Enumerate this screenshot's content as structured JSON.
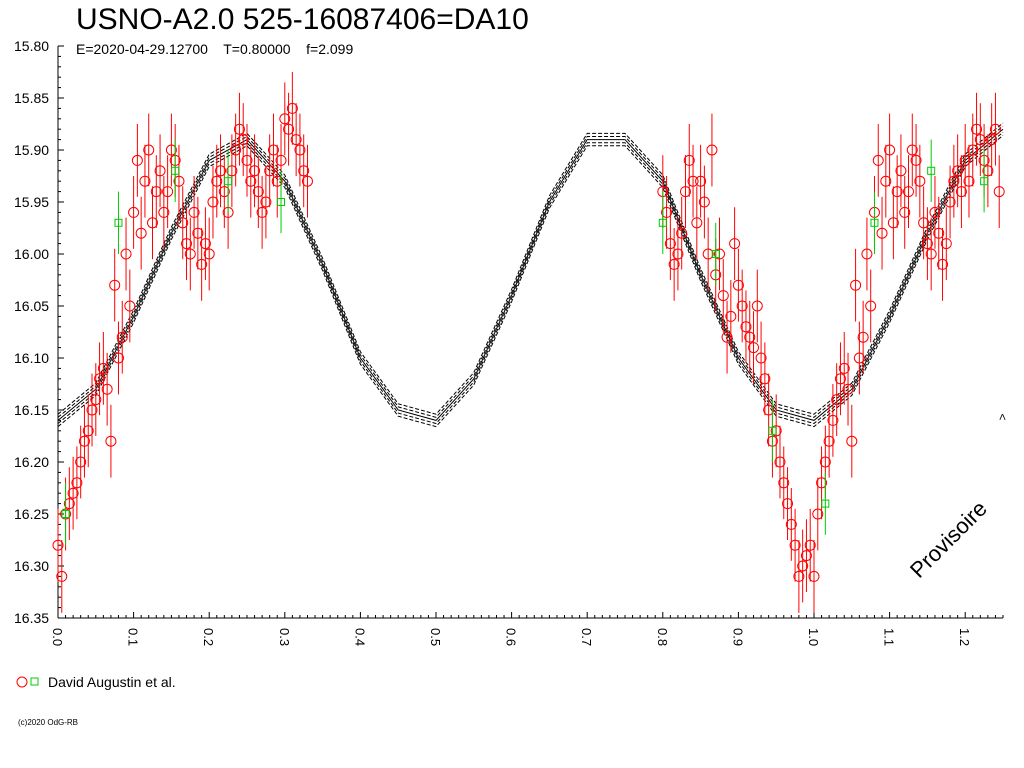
{
  "header": {
    "title": "USNO-A2.0 525-16087406=DA10",
    "subtitle": "E=2020-04-29.12700    T=0.80000    f=2.099"
  },
  "legend": {
    "label": "David Augustin et al."
  },
  "watermark": "Provisoire",
  "copyright": "(c)2020 OdG-RB",
  "side_mark": "<",
  "colors": {
    "obs": "#ff0000",
    "alt": "#00cc00",
    "model": "#000000"
  },
  "chart_data": {
    "type": "scatter",
    "xlabel": "",
    "ylabel": "",
    "xlim": [
      0,
      1.25
    ],
    "ylim": [
      16.35,
      15.8
    ],
    "y_inverted": true,
    "xticks": [
      "0.0",
      "0.1",
      "0.2",
      "0.3",
      "0.4",
      "0.5",
      "0.6",
      "0.7",
      "0.8",
      "0.9",
      "1.0",
      "1.1",
      "1.2"
    ],
    "yticks": [
      "15.80",
      "15.85",
      "15.90",
      "15.95",
      "16.00",
      "16.05",
      "16.10",
      "16.15",
      "16.20",
      "16.25",
      "16.30",
      "16.35"
    ],
    "model_curve": {
      "description_points_x": [
        0.0,
        0.05,
        0.1,
        0.15,
        0.2,
        0.25,
        0.3,
        0.35,
        0.4,
        0.45,
        0.5,
        0.55,
        0.6,
        0.65,
        0.7,
        0.75,
        0.8,
        0.85,
        0.9,
        0.95,
        1.0,
        1.05,
        1.1,
        1.15,
        1.2,
        1.25
      ],
      "description_points_y": [
        16.16,
        16.13,
        16.06,
        15.98,
        15.91,
        15.89,
        15.93,
        16.01,
        16.1,
        16.15,
        16.16,
        16.12,
        16.04,
        15.95,
        15.89,
        15.89,
        15.93,
        16.02,
        16.1,
        16.15,
        16.16,
        16.13,
        16.06,
        15.98,
        15.91,
        15.88
      ]
    },
    "series": [
      {
        "name": "David Augustin et al.",
        "marker": "circle",
        "color": "#ff0000",
        "points": [
          [
            0.0,
            16.28
          ],
          [
            0.005,
            16.31
          ],
          [
            0.01,
            16.25
          ],
          [
            0.015,
            16.24
          ],
          [
            0.02,
            16.23
          ],
          [
            0.025,
            16.22
          ],
          [
            0.03,
            16.2
          ],
          [
            0.035,
            16.18
          ],
          [
            0.04,
            16.17
          ],
          [
            0.045,
            16.15
          ],
          [
            0.05,
            16.14
          ],
          [
            0.055,
            16.12
          ],
          [
            0.06,
            16.11
          ],
          [
            0.065,
            16.13
          ],
          [
            0.07,
            16.18
          ],
          [
            0.075,
            16.03
          ],
          [
            0.08,
            16.1
          ],
          [
            0.085,
            16.08
          ],
          [
            0.09,
            16.0
          ],
          [
            0.095,
            16.05
          ],
          [
            0.1,
            15.96
          ],
          [
            0.105,
            15.91
          ],
          [
            0.11,
            15.98
          ],
          [
            0.115,
            15.93
          ],
          [
            0.12,
            15.9
          ],
          [
            0.125,
            15.97
          ],
          [
            0.13,
            15.94
          ],
          [
            0.135,
            15.92
          ],
          [
            0.14,
            15.96
          ],
          [
            0.145,
            15.94
          ],
          [
            0.15,
            15.9
          ],
          [
            0.155,
            15.91
          ],
          [
            0.16,
            15.93
          ],
          [
            0.165,
            15.97
          ],
          [
            0.17,
            15.99
          ],
          [
            0.175,
            16.0
          ],
          [
            0.18,
            15.96
          ],
          [
            0.185,
            15.98
          ],
          [
            0.19,
            16.01
          ],
          [
            0.195,
            15.99
          ],
          [
            0.2,
            16.0
          ],
          [
            0.205,
            15.95
          ],
          [
            0.21,
            15.93
          ],
          [
            0.215,
            15.92
          ],
          [
            0.22,
            15.94
          ],
          [
            0.225,
            15.96
          ],
          [
            0.23,
            15.92
          ],
          [
            0.235,
            15.9
          ],
          [
            0.24,
            15.88
          ],
          [
            0.245,
            15.89
          ],
          [
            0.25,
            15.91
          ],
          [
            0.255,
            15.93
          ],
          [
            0.26,
            15.92
          ],
          [
            0.265,
            15.94
          ],
          [
            0.27,
            15.96
          ],
          [
            0.275,
            15.95
          ],
          [
            0.28,
            15.92
          ],
          [
            0.285,
            15.9
          ],
          [
            0.29,
            15.93
          ],
          [
            0.295,
            15.91
          ],
          [
            0.3,
            15.87
          ],
          [
            0.305,
            15.88
          ],
          [
            0.31,
            15.86
          ],
          [
            0.315,
            15.89
          ],
          [
            0.32,
            15.9
          ],
          [
            0.325,
            15.92
          ],
          [
            0.33,
            15.93
          ],
          [
            0.8,
            15.94
          ],
          [
            0.805,
            15.96
          ],
          [
            0.81,
            15.99
          ],
          [
            0.815,
            16.01
          ],
          [
            0.82,
            16.0
          ],
          [
            0.825,
            15.98
          ],
          [
            0.83,
            15.94
          ],
          [
            0.835,
            15.91
          ],
          [
            0.84,
            15.93
          ],
          [
            0.845,
            15.97
          ],
          [
            0.85,
            15.93
          ],
          [
            0.855,
            15.95
          ],
          [
            0.86,
            16.0
          ],
          [
            0.865,
            15.9
          ],
          [
            0.87,
            16.02
          ],
          [
            0.875,
            16.0
          ],
          [
            0.88,
            16.04
          ],
          [
            0.885,
            16.08
          ],
          [
            0.89,
            16.06
          ],
          [
            0.895,
            15.99
          ],
          [
            0.9,
            16.03
          ],
          [
            0.905,
            16.05
          ],
          [
            0.91,
            16.07
          ],
          [
            0.915,
            16.08
          ],
          [
            0.92,
            16.09
          ],
          [
            0.925,
            16.05
          ],
          [
            0.93,
            16.1
          ],
          [
            0.935,
            16.12
          ],
          [
            0.94,
            16.15
          ],
          [
            0.945,
            16.18
          ],
          [
            0.95,
            16.17
          ],
          [
            0.955,
            16.2
          ],
          [
            0.96,
            16.22
          ],
          [
            0.965,
            16.24
          ],
          [
            0.97,
            16.26
          ],
          [
            0.975,
            16.28
          ],
          [
            0.98,
            16.31
          ],
          [
            0.985,
            16.3
          ],
          [
            0.99,
            16.29
          ],
          [
            0.995,
            16.28
          ],
          [
            1.0,
            16.31
          ],
          [
            1.005,
            16.25
          ],
          [
            1.01,
            16.22
          ],
          [
            1.015,
            16.2
          ],
          [
            1.02,
            16.18
          ],
          [
            1.025,
            16.16
          ],
          [
            1.03,
            16.14
          ],
          [
            1.035,
            16.12
          ],
          [
            1.04,
            16.11
          ],
          [
            1.045,
            16.13
          ],
          [
            1.05,
            16.18
          ],
          [
            1.055,
            16.03
          ],
          [
            1.06,
            16.1
          ],
          [
            1.065,
            16.08
          ],
          [
            1.07,
            16.0
          ],
          [
            1.075,
            16.05
          ],
          [
            1.08,
            15.96
          ],
          [
            1.085,
            15.91
          ],
          [
            1.09,
            15.98
          ],
          [
            1.095,
            15.93
          ],
          [
            1.1,
            15.9
          ],
          [
            1.105,
            15.97
          ],
          [
            1.11,
            15.94
          ],
          [
            1.115,
            15.92
          ],
          [
            1.12,
            15.96
          ],
          [
            1.125,
            15.94
          ],
          [
            1.13,
            15.9
          ],
          [
            1.135,
            15.91
          ],
          [
            1.14,
            15.93
          ],
          [
            1.145,
            15.97
          ],
          [
            1.15,
            15.99
          ],
          [
            1.155,
            16.0
          ],
          [
            1.16,
            15.96
          ],
          [
            1.165,
            15.98
          ],
          [
            1.17,
            16.01
          ],
          [
            1.175,
            15.99
          ],
          [
            1.18,
            15.95
          ],
          [
            1.185,
            15.93
          ],
          [
            1.19,
            15.92
          ],
          [
            1.195,
            15.94
          ],
          [
            1.2,
            15.91
          ],
          [
            1.205,
            15.93
          ],
          [
            1.21,
            15.9
          ],
          [
            1.215,
            15.88
          ],
          [
            1.22,
            15.89
          ],
          [
            1.225,
            15.91
          ],
          [
            1.23,
            15.92
          ],
          [
            1.235,
            15.89
          ],
          [
            1.24,
            15.88
          ],
          [
            1.245,
            15.94
          ]
        ]
      },
      {
        "name": "David Augustin et al.",
        "marker": "square",
        "color": "#00cc00",
        "points": [
          [
            0.01,
            16.25
          ],
          [
            0.08,
            15.97
          ],
          [
            0.155,
            15.92
          ],
          [
            0.225,
            15.93
          ],
          [
            0.295,
            15.95
          ],
          [
            0.8,
            15.97
          ],
          [
            0.87,
            16.0
          ],
          [
            0.945,
            16.17
          ],
          [
            1.015,
            16.24
          ],
          [
            1.08,
            15.97
          ],
          [
            1.155,
            15.92
          ],
          [
            1.225,
            15.93
          ]
        ]
      }
    ]
  }
}
